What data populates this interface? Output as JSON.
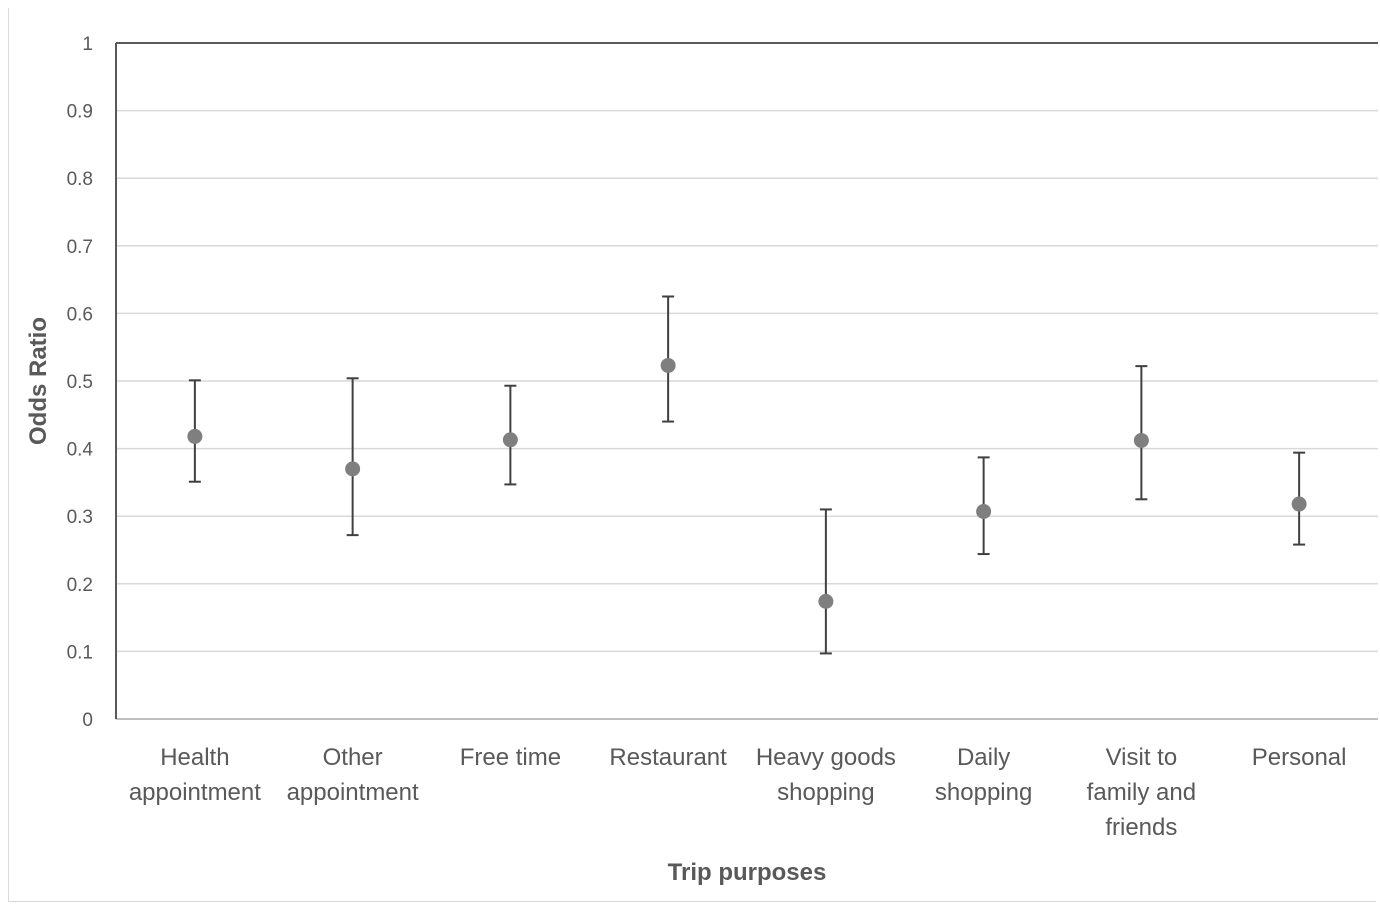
{
  "chart_data": {
    "type": "scatter",
    "title": "",
    "xlabel": "Trip purposes",
    "ylabel": "Odds Ratio",
    "ylim": [
      0,
      1
    ],
    "yticks": [
      "0",
      "0.1",
      "0.2",
      "0.3",
      "0.4",
      "0.5",
      "0.6",
      "0.7",
      "0.8",
      "0.9",
      "1"
    ],
    "grid": true,
    "legend": "none",
    "categories": [
      [
        "Health",
        "appointment"
      ],
      [
        "Other",
        "appointment"
      ],
      [
        "Free time"
      ],
      [
        "Restaurant"
      ],
      [
        "Heavy goods",
        "shopping"
      ],
      [
        "Daily",
        "shopping"
      ],
      [
        "Visit to",
        "family and",
        "friends"
      ],
      [
        "Personal"
      ]
    ],
    "series": [
      {
        "values": [
          0.418,
          0.37,
          0.413,
          0.523,
          0.174,
          0.307,
          0.412,
          0.318
        ],
        "lower": [
          0.351,
          0.272,
          0.347,
          0.44,
          0.097,
          0.244,
          0.325,
          0.258
        ],
        "upper": [
          0.501,
          0.504,
          0.493,
          0.625,
          0.31,
          0.387,
          0.522,
          0.394
        ]
      }
    ],
    "colors": {
      "marker": "#7f7f7f",
      "errorbar": "#404040",
      "grid": "#d9d9d9",
      "text": "#595959"
    }
  }
}
